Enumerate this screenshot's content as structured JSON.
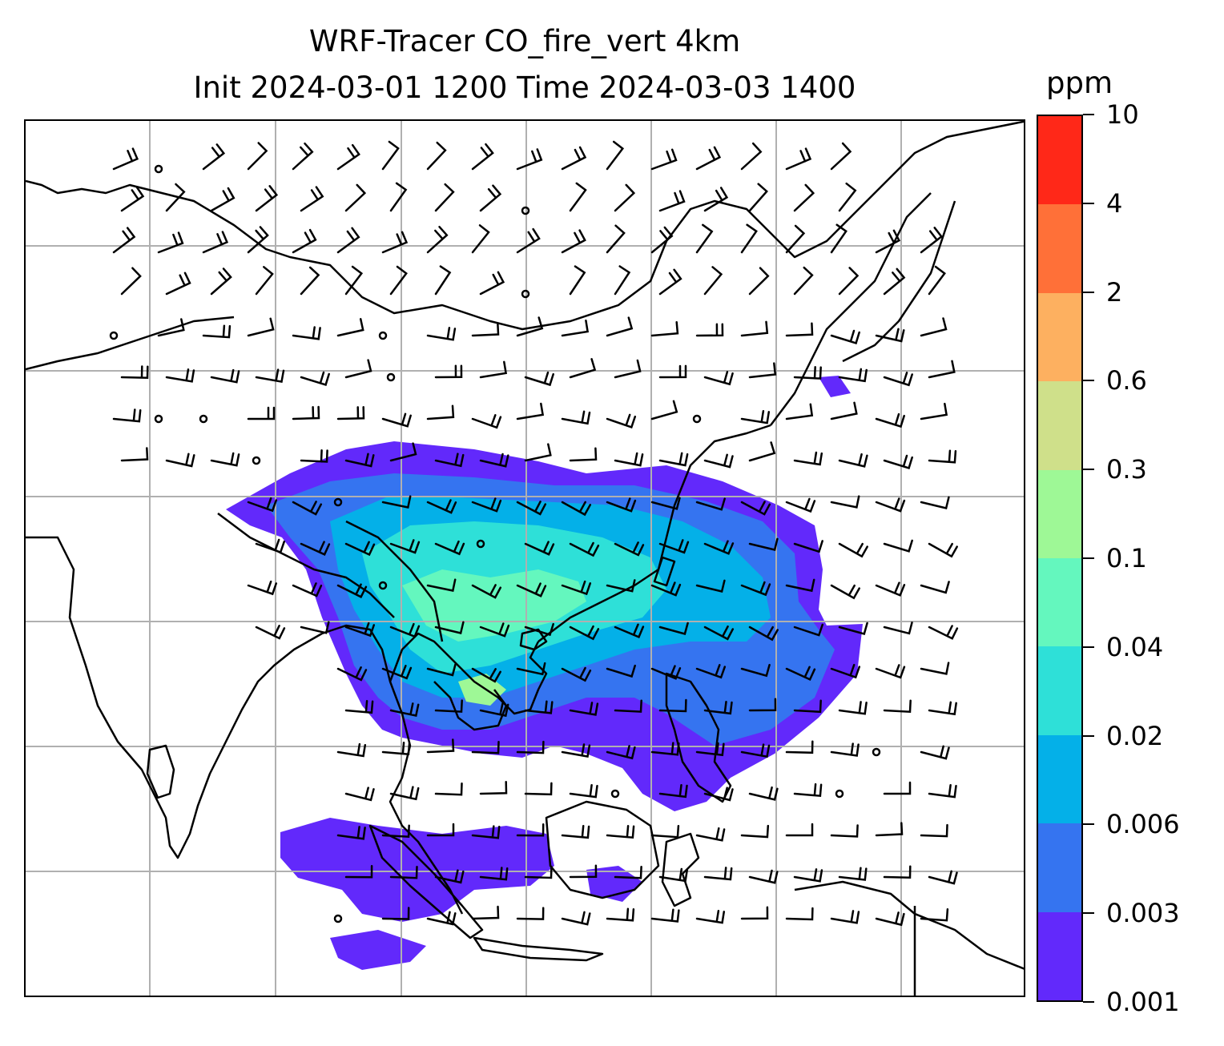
{
  "title": {
    "line1": "WRF-Tracer CO_fire_vert 4km",
    "line2": "Init 2024-03-01 1200 Time 2024-03-03 1400"
  },
  "colorbar": {
    "unit": "ppm",
    "tick_labels": [
      "0.001",
      "0.003",
      "0.006",
      "0.02",
      "0.04",
      "0.1",
      "0.3",
      "0.6",
      "2",
      "4",
      "10"
    ],
    "colors": [
      "#6229fb",
      "#3574f0",
      "#04b0e8",
      "#2ee0d8",
      "#64f7be",
      "#9ef896",
      "#cfe08a",
      "#fdb060",
      "#ff7038",
      "#ff2818"
    ]
  },
  "map": {
    "gridlines": true,
    "coastline_color": "#000000",
    "gridline_color": "#b0b0b0",
    "fields": [
      "CO_fire_vert concentration (filled contours)",
      "wind barbs"
    ]
  }
}
